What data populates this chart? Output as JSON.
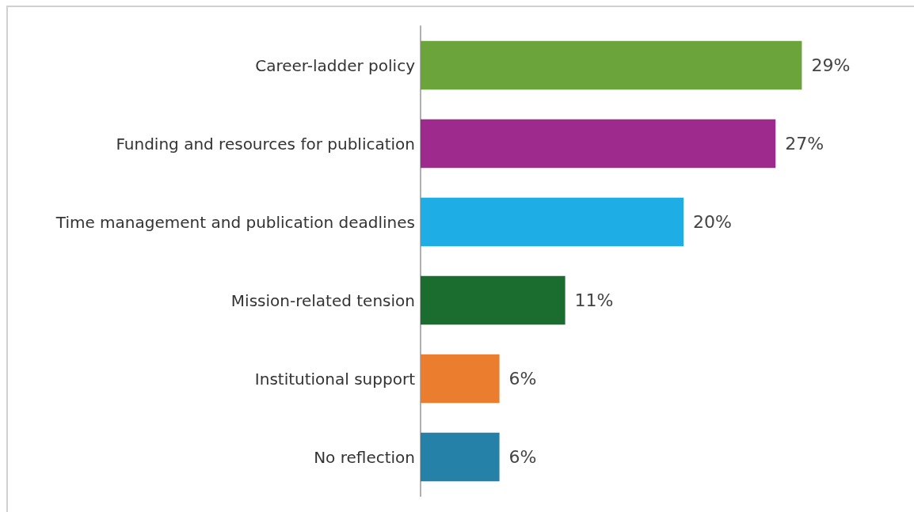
{
  "chart_data": {
    "type": "bar",
    "orientation": "horizontal",
    "categories": [
      "Career-ladder policy",
      "Funding and resources for publication",
      "Time management and publication deadlines",
      "Mission-related tension",
      "Institutional support",
      "No reflection"
    ],
    "values": [
      29,
      27,
      20,
      11,
      6,
      6
    ],
    "colors": [
      "#6ba43a",
      "#9e2a8d",
      "#1eade4",
      "#1b6d2f",
      "#ea7d2e",
      "#2581a8"
    ],
    "value_labels": [
      "29%",
      "27%",
      "20%",
      "11%",
      "6%",
      "6%"
    ]
  }
}
